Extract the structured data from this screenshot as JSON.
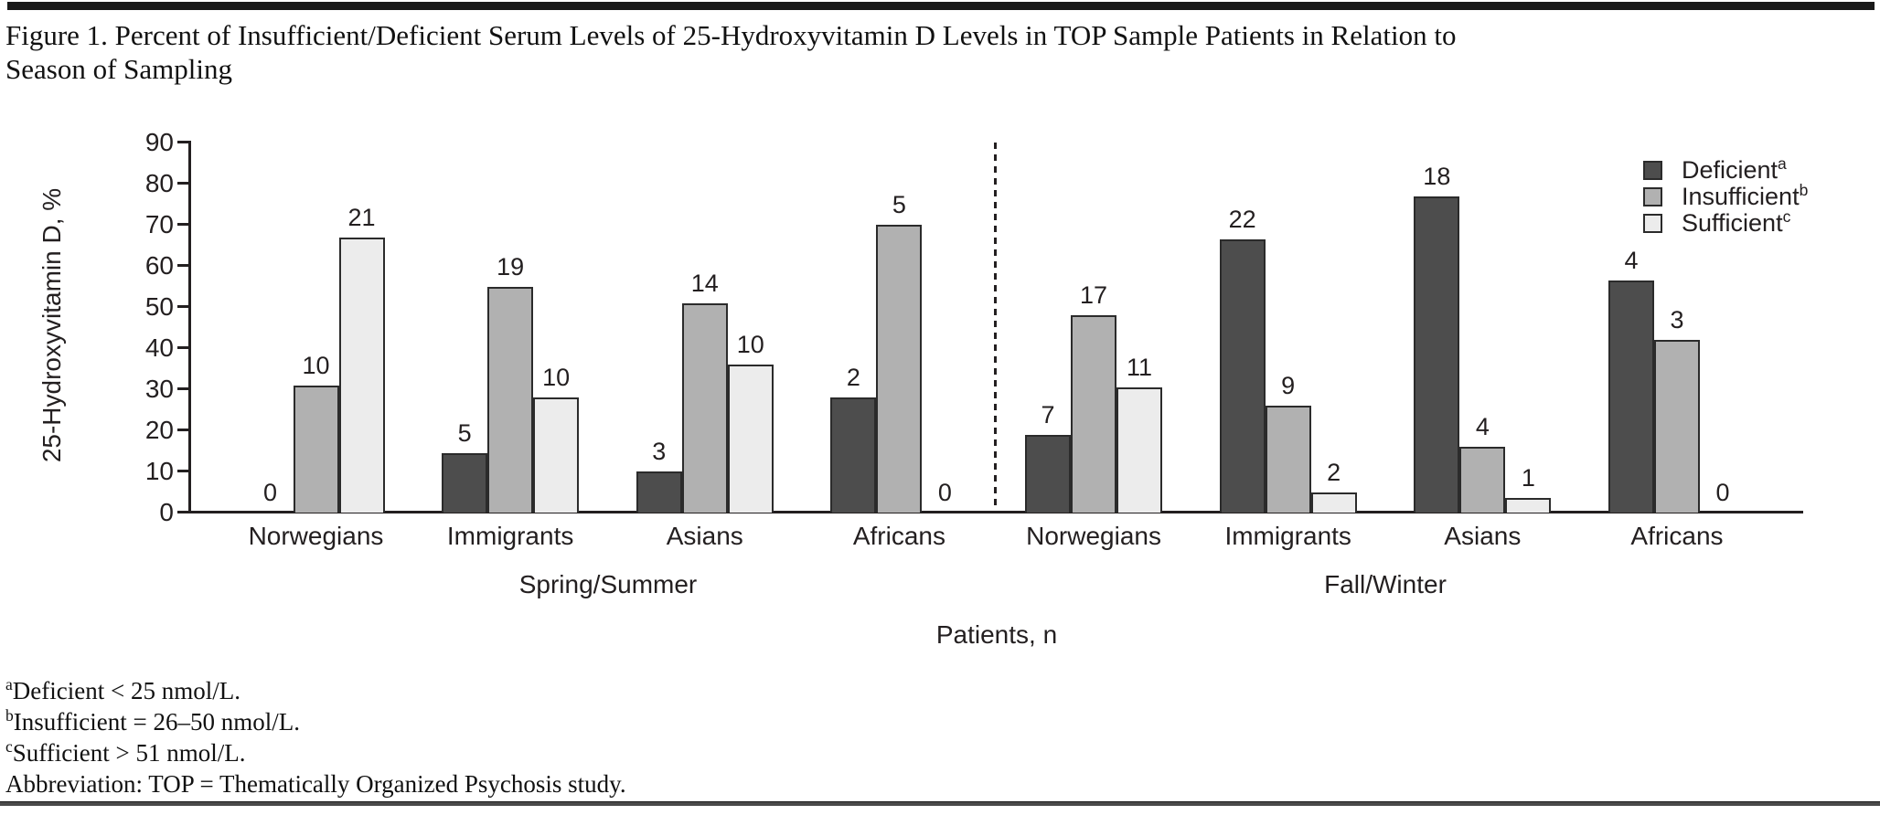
{
  "figure": {
    "title": "Figure 1. Percent of Insufficient/Deficient Serum Levels of 25-Hydroxyvitamin D Levels in TOP Sample Patients in Relation to\nSeason of Sampling"
  },
  "chart_data": {
    "type": "bar",
    "ylabel": "25-Hydroxyvitamin D, %",
    "xlabel": "Patients, n",
    "ylim": [
      0,
      90
    ],
    "yticks": [
      0,
      10,
      20,
      30,
      40,
      50,
      60,
      70,
      80,
      90
    ],
    "grid": false,
    "legend_position": "top-right",
    "bar_value_unit": "percent of group",
    "bar_label_meaning": "number of patients (n) shown above each bar",
    "series_meta": [
      {
        "name": "Deficient",
        "sup": "a",
        "color": "#4d4d4d"
      },
      {
        "name": "Insufficient",
        "sup": "b",
        "color": "#b1b1b1"
      },
      {
        "name": "Sufficient",
        "sup": "c",
        "color": "#ececec"
      }
    ],
    "groups": [
      {
        "season": "Spring/Summer",
        "categories": [
          "Norwegians",
          "Immigrants",
          "Asians",
          "Africans"
        ],
        "series": [
          {
            "name": "Deficient",
            "percent": [
              0,
              14.5,
              10,
              28
            ],
            "n": [
              0,
              5,
              3,
              2
            ]
          },
          {
            "name": "Insufficient",
            "percent": [
              31,
              55,
              51,
              70
            ],
            "n": [
              10,
              19,
              14,
              5
            ]
          },
          {
            "name": "Sufficient",
            "percent": [
              67,
              28,
              36,
              0
            ],
            "n": [
              21,
              10,
              10,
              0
            ]
          }
        ]
      },
      {
        "season": "Fall/Winter",
        "categories": [
          "Norwegians",
          "Immigrants",
          "Asians",
          "Africans"
        ],
        "series": [
          {
            "name": "Deficient",
            "percent": [
              19,
              66.5,
              77,
              56.5
            ],
            "n": [
              7,
              22,
              18,
              4
            ]
          },
          {
            "name": "Insufficient",
            "percent": [
              48,
              26,
              16,
              42
            ],
            "n": [
              17,
              9,
              4,
              3
            ]
          },
          {
            "name": "Sufficient",
            "percent": [
              30.5,
              5,
              3.5,
              0
            ],
            "n": [
              11,
              2,
              1,
              0
            ]
          }
        ]
      }
    ]
  },
  "footnotes": [
    {
      "sup": "a",
      "text": "Deficient < 25 nmol/L."
    },
    {
      "sup": "b",
      "text": "Insufficient = 26–50 nmol/L."
    },
    {
      "sup": "c",
      "text": "Sufficient > 51 nmol/L."
    },
    {
      "sup": "",
      "text": "Abbreviation: TOP = Thematically Organized Psychosis study."
    }
  ],
  "colors": {
    "deficient": "#4d4d4d",
    "insufficient": "#b1b1b1",
    "sufficient": "#ececec",
    "bar_border": "#2b2b2b",
    "axis": "#231f20",
    "text": "#231f20",
    "top_rule": "#191919"
  }
}
